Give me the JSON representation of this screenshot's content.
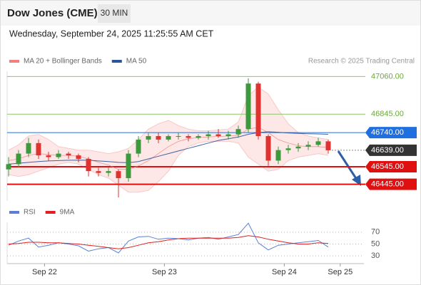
{
  "header": {
    "title": "Dow Jones (CME)",
    "interval": "30 MIN",
    "datetime": "Wednesday, September 24, 2025 11:25:55 AM CET"
  },
  "chart_data": [
    {
      "type": "candlestick",
      "credit": "Research © 2025 Trading Central",
      "open": [
        46530,
        46560,
        46620,
        46680,
        46610,
        46600,
        46620,
        46610,
        46590,
        46520,
        46510,
        46520,
        46480,
        46620,
        46700,
        46720,
        46700,
        46720,
        46720,
        46710,
        46720,
        46730,
        46720,
        46730,
        46760,
        47020,
        46720,
        46580,
        46640,
        46650,
        46660,
        46670,
        46690
      ],
      "high": [
        46600,
        46640,
        46710,
        46700,
        46630,
        46640,
        46630,
        46620,
        46600,
        46540,
        46540,
        46530,
        46640,
        46720,
        46740,
        46740,
        46730,
        46740,
        46730,
        46730,
        46750,
        46760,
        46750,
        46780,
        47050,
        47030,
        46730,
        46660,
        46670,
        46680,
        46690,
        46710,
        46700
      ],
      "low": [
        46490,
        46540,
        46600,
        46590,
        46580,
        46590,
        46590,
        46570,
        46490,
        46490,
        46490,
        46370,
        46460,
        46600,
        46680,
        46680,
        46690,
        46700,
        46690,
        46700,
        46700,
        46710,
        46700,
        46710,
        46740,
        46700,
        46550,
        46560,
        46620,
        46630,
        46640,
        46660,
        46620
      ],
      "close": [
        46560,
        46620,
        46680,
        46610,
        46600,
        46620,
        46610,
        46590,
        46520,
        46510,
        46520,
        46480,
        46620,
        46700,
        46720,
        46700,
        46720,
        46720,
        46710,
        46720,
        46730,
        46720,
        46730,
        46760,
        47020,
        46720,
        46580,
        46640,
        46650,
        46660,
        46670,
        46690,
        46639
      ],
      "up_color": "#3c9a3c",
      "down_color": "#e0322e",
      "series": [
        {
          "name": "MA 20 + Bollinger Bands",
          "color": "#f08080",
          "values": [
            46580,
            46590,
            46610,
            46620,
            46615,
            46610,
            46610,
            46605,
            46590,
            46570,
            46555,
            46530,
            46530,
            46550,
            46580,
            46620,
            46660,
            46690,
            46705,
            46712,
            46715,
            46718,
            46720,
            46725,
            46760,
            46770,
            46740,
            46700,
            46680,
            46665,
            46660,
            46660,
            46655
          ],
          "upper": [
            46640,
            46670,
            46720,
            46730,
            46700,
            46660,
            46650,
            46640,
            46640,
            46630,
            46620,
            46630,
            46650,
            46700,
            46760,
            46790,
            46810,
            46780,
            46760,
            46750,
            46750,
            46755,
            46760,
            46800,
            46950,
            47000,
            46960,
            46870,
            46790,
            46740,
            46720,
            46710,
            46700
          ],
          "lower": [
            46500,
            46490,
            46500,
            46520,
            46540,
            46560,
            46570,
            46560,
            46530,
            46500,
            46480,
            46440,
            46400,
            46400,
            46410,
            46460,
            46520,
            46610,
            46660,
            46680,
            46690,
            46690,
            46690,
            46680,
            46600,
            46560,
            46520,
            46530,
            46580,
            46600,
            46610,
            46620,
            46610
          ]
        },
        {
          "name": "MA 50",
          "color": "#2a5599",
          "values": [
            46560,
            46565,
            46570,
            46575,
            46578,
            46580,
            46582,
            46583,
            46582,
            46578,
            46575,
            46570,
            46568,
            46575,
            46590,
            46605,
            46620,
            46635,
            46650,
            46665,
            46680,
            46695,
            46705,
            46715,
            46730,
            46740,
            46745,
            46742,
            46738,
            46735,
            46733,
            46732,
            46730
          ]
        }
      ],
      "levels": [
        {
          "value": 47060,
          "label": "47060.00",
          "color": "#8cc56a",
          "style": "target"
        },
        {
          "value": 46845,
          "label": "46845.00",
          "color": "#8cc56a",
          "style": "target"
        },
        {
          "value": 46740,
          "label": "46740.00",
          "color": "#1f6fe0",
          "style": "pivot"
        },
        {
          "value": 46639,
          "label": "46639.00",
          "color": "#333333",
          "style": "last"
        },
        {
          "value": 46545,
          "label": "46545.00",
          "color": "#e01010",
          "style": "support"
        },
        {
          "value": 46445,
          "label": "46445.00",
          "color": "#e01010",
          "style": "support"
        }
      ],
      "ylim": [
        46350,
        47090
      ],
      "xlim": [
        0,
        35.5
      ]
    },
    {
      "type": "line",
      "series": [
        {
          "name": "RSI",
          "color": "#5b7fd6",
          "values": [
            48,
            55,
            60,
            45,
            48,
            52,
            50,
            47,
            38,
            42,
            44,
            35,
            55,
            62,
            63,
            58,
            60,
            59,
            57,
            60,
            61,
            58,
            62,
            66,
            85,
            52,
            40,
            48,
            50,
            52,
            54,
            56,
            45
          ]
        },
        {
          "name": "9MA",
          "color": "#e02020",
          "values": [
            50,
            51,
            53,
            53,
            52,
            52,
            51,
            50,
            48,
            46,
            44,
            42,
            44,
            48,
            52,
            54,
            57,
            59,
            60,
            60,
            60,
            60,
            60,
            61,
            64,
            62,
            58,
            55,
            52,
            50,
            50,
            52,
            51
          ]
        }
      ],
      "ylim": [
        17,
        89
      ],
      "yticks": [
        70,
        50,
        30
      ],
      "xlim": [
        0,
        35.5
      ],
      "xticks": [
        {
          "value": 3.6,
          "label": "Sep 22"
        },
        {
          "value": 15.6,
          "label": "Sep 23"
        },
        {
          "value": 27.6,
          "label": "Sep 24"
        },
        {
          "value": 33.2,
          "label": "Sep 25"
        }
      ]
    }
  ]
}
